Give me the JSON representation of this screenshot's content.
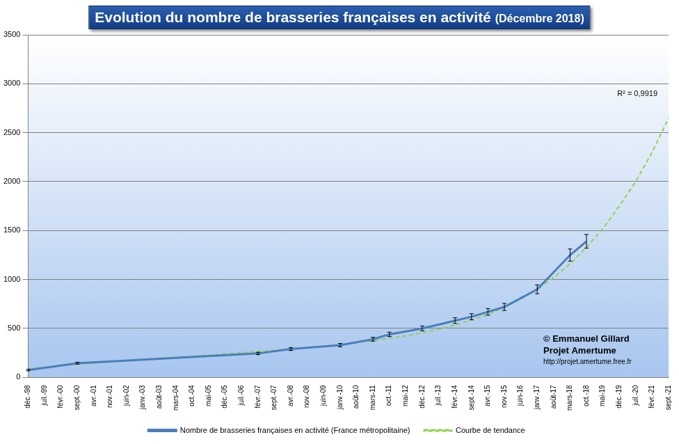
{
  "chart_data": {
    "type": "line",
    "title": "Evolution du nombre de brasseries françaises en activité",
    "subtitle": "(Décembre 2018)",
    "categories": [
      "déc.-98",
      "juil.-99",
      "févr.-00",
      "sept.-00",
      "avr.-01",
      "nov.-01",
      "juin-02",
      "janv.-03",
      "août-03",
      "mars-04",
      "oct.-04",
      "mai-05",
      "déc.-05",
      "juil.-06",
      "févr.-07",
      "sept.-07",
      "avr.-08",
      "nov.-08",
      "juin-09",
      "janv.-10",
      "août-10",
      "mars-11",
      "oct.-11",
      "mai-12",
      "déc.-12",
      "juil.-13",
      "févr.-14",
      "sept.-14",
      "avr.-15",
      "nov.-15",
      "juin-16",
      "janv.-17",
      "août-17",
      "mars-18",
      "oct.-18",
      "mai-19",
      "déc.-19",
      "juil.-20",
      "févr.-21",
      "sept.-21"
    ],
    "series": [
      {
        "name": "Nombre de brasseries françaises en activité (France métropolitaine)",
        "color": "#4a7ebb",
        "line_style": "solid",
        "marker": "none",
        "values": [
          75,
          null,
          null,
          145,
          null,
          null,
          null,
          null,
          null,
          null,
          null,
          null,
          null,
          null,
          245,
          null,
          290,
          null,
          null,
          330,
          null,
          390,
          440,
          null,
          500,
          null,
          580,
          620,
          670,
          720,
          null,
          900,
          null,
          1250,
          1390,
          null,
          null,
          null,
          null,
          null
        ],
        "errors": [
          8,
          null,
          null,
          10,
          null,
          null,
          null,
          null,
          null,
          null,
          null,
          null,
          null,
          null,
          12,
          null,
          15,
          null,
          null,
          17,
          null,
          20,
          22,
          null,
          25,
          null,
          29,
          31,
          34,
          36,
          null,
          45,
          null,
          62,
          70,
          null,
          null,
          null,
          null,
          null
        ]
      },
      {
        "name": "Courbe de tendance",
        "color": "#92d050",
        "line_style": "dashed",
        "marker": "none",
        "values": [
          90,
          105,
          120,
          135,
          148,
          160,
          172,
          183,
          195,
          205,
          215,
          228,
          240,
          252,
          265,
          278,
          292,
          305,
          320,
          335,
          355,
          375,
          400,
          425,
          455,
          490,
          535,
          585,
          645,
          715,
          800,
          900,
          1020,
          1160,
          1330,
          1520,
          1750,
          2000,
          2300,
          2650
        ]
      }
    ],
    "ylim": [
      0,
      3500
    ],
    "yticks": [
      0,
      500,
      1000,
      1500,
      2000,
      2500,
      3000,
      3500
    ],
    "grid": true,
    "legend": "bottom",
    "annotations": [
      "R² = 0,9919",
      "© Emmanuel Gillard",
      "Projet Amertume",
      "http://projet.amertume.free.fr"
    ]
  }
}
